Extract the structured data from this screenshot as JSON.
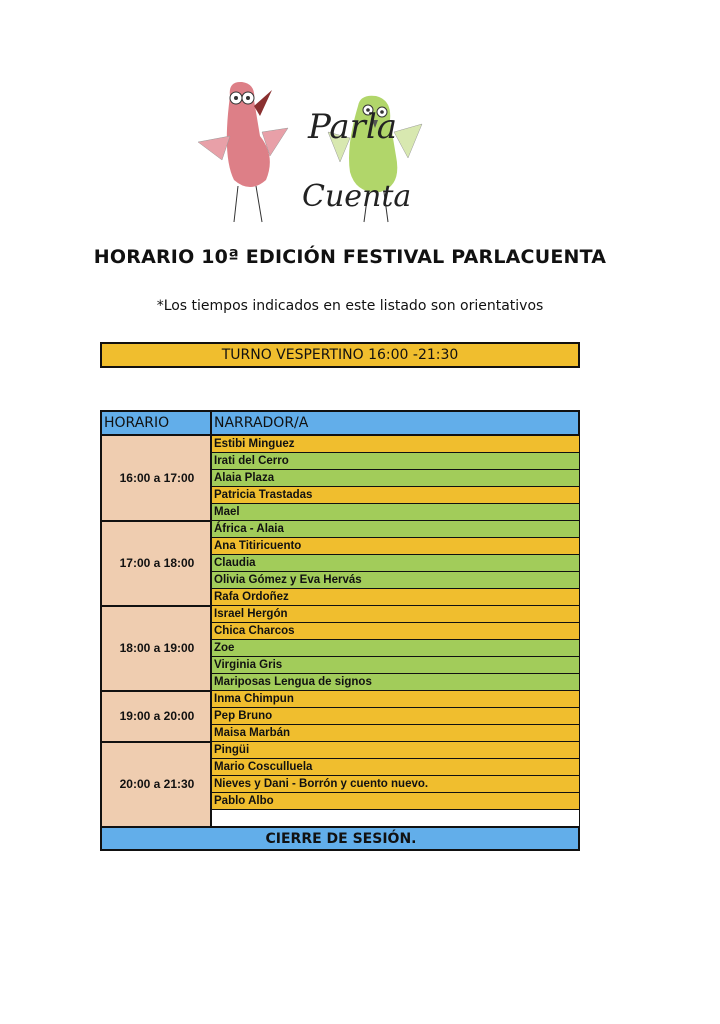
{
  "logo": {
    "text": "Parla Cuenta",
    "colors": {
      "red_bird": "#D9717A",
      "green_bird": "#A8D25A"
    }
  },
  "title": "HORARIO 10ª EDICIÓN FESTIVAL PARLACUENTA",
  "note": "*Los tiempos indicados en este listado son orientativos",
  "turno": "TURNO VESPERTINO 16:00 -21:30",
  "table": {
    "headers": [
      "HORARIO",
      "NARRADOR/A"
    ],
    "blocks": [
      {
        "time": "16:00 a 17:00",
        "rows": [
          {
            "name": "Estibi Minguez",
            "color": "orange"
          },
          {
            "name": "Irati del Cerro",
            "color": "green"
          },
          {
            "name": "Alaia Plaza",
            "color": "green"
          },
          {
            "name": "Patricia Trastadas",
            "color": "orange"
          },
          {
            "name": "Mael",
            "color": "green"
          }
        ]
      },
      {
        "time": "17:00 a 18:00",
        "rows": [
          {
            "name": "África - Alaia",
            "color": "green"
          },
          {
            "name": "Ana Titiricuento",
            "color": "orange"
          },
          {
            "name": "Claudia",
            "color": "green"
          },
          {
            "name": "Olivia Gómez y Eva Hervás",
            "color": "green"
          },
          {
            "name": "Rafa Ordoñez",
            "color": "orange"
          }
        ]
      },
      {
        "time": "18:00 a 19:00",
        "rows": [
          {
            "name": "Israel Hergón",
            "color": "orange"
          },
          {
            "name": "Chica Charcos",
            "color": "orange"
          },
          {
            "name": "Zoe",
            "color": "green"
          },
          {
            "name": "Virginia Gris",
            "color": "green"
          },
          {
            "name": "Mariposas Lengua de signos",
            "color": "green"
          }
        ]
      },
      {
        "time": "19:00 a 20:00",
        "rows": [
          {
            "name": "Inma Chimpun",
            "color": "orange"
          },
          {
            "name": "Pep Bruno",
            "color": "orange"
          },
          {
            "name": "Maisa Marbán",
            "color": "orange"
          }
        ]
      },
      {
        "time": "20:00 a 21:30",
        "rows": [
          {
            "name": "Pingüi",
            "color": "orange"
          },
          {
            "name": "Mario Cosculluela",
            "color": "orange"
          },
          {
            "name": "Nieves y Dani - Borrón y cuento nuevo.",
            "color": "orange"
          },
          {
            "name": "Pablo Albo",
            "color": "orange"
          },
          {
            "name": "",
            "color": "white"
          }
        ]
      }
    ],
    "footer": "CIERRE DE SESIÓN."
  },
  "colors": {
    "orange": "#F0BE2E",
    "green": "#A2CC5A",
    "peach": "#EFCDB0",
    "blue": "#62AEEA"
  }
}
